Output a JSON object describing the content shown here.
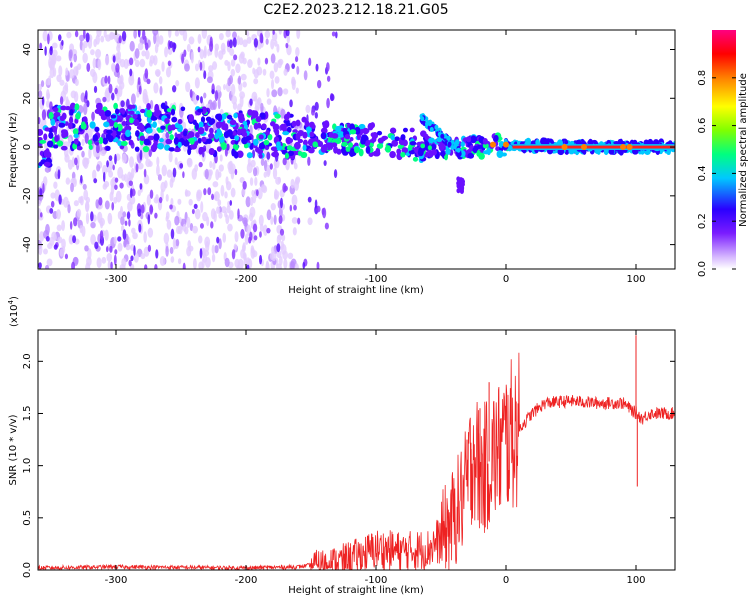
{
  "title": "C2E2.2023.212.18.21.G05",
  "chart_data": [
    {
      "type": "heatmap",
      "title": "C2E2.2023.212.18.21.G05",
      "xlabel": "Height of straight line (km)",
      "ylabel": "Frequency (Hz)",
      "xlim": [
        -360,
        130
      ],
      "ylim": [
        -50,
        48
      ],
      "xticks": [
        -300,
        -200,
        -100,
        0,
        100
      ],
      "yticks": [
        -40,
        -20,
        0,
        20,
        40
      ],
      "colorbar": {
        "label": "Normalized spectral amplitude",
        "range": [
          0,
          1
        ],
        "ticks": [
          0.0,
          0.2,
          0.4,
          0.6,
          0.8
        ],
        "colors": [
          "#ffffff",
          "#d6b8ff",
          "#7a1cff",
          "#2a00ff",
          "#00c8ff",
          "#00ff80",
          "#80ff00",
          "#ffff00",
          "#ff8000",
          "#ff0000",
          "#ff0080"
        ]
      },
      "ridge": [
        {
          "x": -350,
          "y": 8
        },
        {
          "x": -300,
          "y": 8
        },
        {
          "x": -260,
          "y": 8
        },
        {
          "x": -220,
          "y": 6
        },
        {
          "x": -180,
          "y": 5
        },
        {
          "x": -150,
          "y": 4
        },
        {
          "x": -120,
          "y": 3
        },
        {
          "x": -100,
          "y": 3
        },
        {
          "x": -80,
          "y": 2
        },
        {
          "x": -60,
          "y": 0
        },
        {
          "x": -40,
          "y": 0
        },
        {
          "x": -20,
          "y": 0
        },
        {
          "x": 0,
          "y": 1
        },
        {
          "x": 50,
          "y": 0
        },
        {
          "x": 100,
          "y": 0
        },
        {
          "x": 130,
          "y": 0
        }
      ]
    },
    {
      "type": "line",
      "xlabel": "Height of straight line (km)",
      "ylabel": "SNR (10 * v/v)",
      "scale_label": "(x10",
      "scale_exp": "4",
      "scale_close": ")",
      "xlim": [
        -360,
        130
      ],
      "ylim": [
        0,
        2.3
      ],
      "xticks": [
        -300,
        -200,
        -100,
        0,
        100
      ],
      "yticks": [
        "0.0",
        "0.5",
        "1.0",
        "1.5",
        "2.0"
      ],
      "color": "#ee2222",
      "series": [
        {
          "name": "SNR",
          "x": [
            -360,
            -300,
            -200,
            -160,
            -130,
            -110,
            -100,
            -80,
            -60,
            -50,
            -40,
            -30,
            -25,
            -20,
            -15,
            -10,
            -5,
            0,
            10,
            20,
            30,
            50,
            70,
            90,
            95,
            100,
            105,
            110,
            120,
            130
          ],
          "y": [
            0.02,
            0.03,
            0.02,
            0.03,
            0.08,
            0.15,
            0.2,
            0.18,
            0.2,
            0.3,
            0.5,
            0.8,
            1.2,
            0.9,
            1.0,
            1.1,
            1.15,
            1.25,
            1.35,
            1.5,
            1.6,
            1.62,
            1.6,
            1.6,
            1.55,
            1.5,
            1.45,
            1.5,
            1.5,
            1.5
          ]
        }
      ],
      "spikes": [
        {
          "x": -30,
          "y": 1.25
        },
        {
          "x": -27,
          "y": 1.22
        },
        {
          "x": -20,
          "y": 1.55
        },
        {
          "x": -13,
          "y": 1.8
        },
        {
          "x": 100,
          "y": 2.25
        },
        {
          "x": 101,
          "y": 0.8
        }
      ]
    }
  ]
}
